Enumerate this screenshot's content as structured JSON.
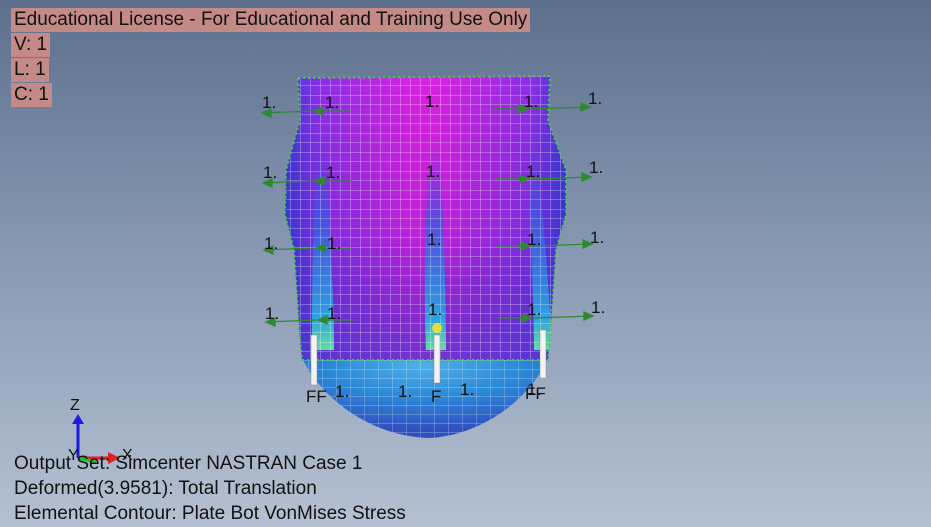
{
  "license_banner": "Educational License - For Educational and Training Use Only",
  "view_info": {
    "view": "V: 1",
    "layer": "L: 1",
    "color": "C: 1"
  },
  "load_value": "1.",
  "constraint_labels": {
    "double": "FF",
    "single": "F"
  },
  "axes": {
    "z": "Z",
    "y": "Y",
    "x": "X"
  },
  "status": {
    "output_set": "Output Set: Simcenter NASTRAN Case 1",
    "deformed": "Deformed(3.9581): Total Translation",
    "contour": "Elemental Contour: Plate Bot VonMises Stress"
  },
  "colors": {
    "background_top": "#5c6f8c",
    "background_bottom": "#b5c1d2",
    "contour_high": "#e020e0",
    "contour_mid": "#6a3cd8",
    "contour_low": "#2ea0e0",
    "mesh_node": "#3fd23f",
    "load_arrow": "#2f8a2f",
    "license_bg": "#c48a88"
  }
}
